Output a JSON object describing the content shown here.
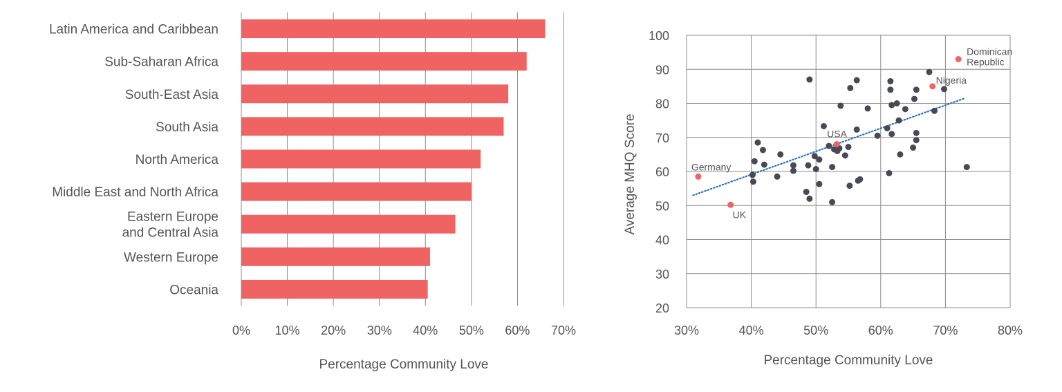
{
  "colors": {
    "bar": "#ef6363",
    "point": "#474954",
    "highlight": "#ef6363",
    "trend": "#2e6fb7",
    "grid": "#8c8c8c",
    "text": "#555555"
  },
  "chart_data": [
    {
      "type": "bar",
      "orientation": "horizontal",
      "categories": [
        "Latin America and Caribbean",
        "Sub-Saharan Africa",
        "South-East Asia",
        "South Asia",
        "North America",
        "Middle East and North Africa",
        "Eastern Europe and Central Asia",
        "Western Europe",
        "Oceania"
      ],
      "category_lines": [
        [
          "Latin America and Caribbean"
        ],
        [
          "Sub-Saharan Africa"
        ],
        [
          "South-East Asia"
        ],
        [
          "South Asia"
        ],
        [
          "North America"
        ],
        [
          "Middle East and North Africa"
        ],
        [
          "Eastern Europe",
          "and Central Asia"
        ],
        [
          "Western Europe"
        ],
        [
          "Oceania"
        ]
      ],
      "values": [
        66,
        62,
        58,
        57,
        52,
        50,
        46.5,
        41,
        40.5
      ],
      "xlim": [
        0,
        70
      ],
      "xticks": [
        0,
        10,
        20,
        30,
        40,
        50,
        60,
        70
      ],
      "xtick_labels": [
        "0%",
        "10%",
        "20%",
        "30%",
        "40%",
        "50%",
        "60%",
        "70%"
      ],
      "xlabel": "Percentage Community Love",
      "ylabel": "",
      "title": ""
    },
    {
      "type": "scatter",
      "xlim": [
        30,
        80
      ],
      "ylim": [
        20,
        100
      ],
      "xticks": [
        30,
        40,
        50,
        60,
        70,
        80
      ],
      "xtick_labels": [
        "30%",
        "40%",
        "50%",
        "60%",
        "70%",
        "80%"
      ],
      "yticks": [
        20,
        30,
        40,
        50,
        60,
        70,
        80,
        90,
        100
      ],
      "ytick_labels": [
        "20",
        "30",
        "40",
        "50",
        "60",
        "70",
        "80",
        "90",
        "100"
      ],
      "xlabel": "Percentage Community Love",
      "ylabel": "Average MHQ Score",
      "title": "",
      "points": [
        [
          41.0,
          68.5
        ],
        [
          41.8,
          66.3
        ],
        [
          40.5,
          63.0
        ],
        [
          42.0,
          62.0
        ],
        [
          44.5,
          65.0
        ],
        [
          40.2,
          59.0
        ],
        [
          40.3,
          57.0
        ],
        [
          44.0,
          58.5
        ],
        [
          46.5,
          60.2
        ],
        [
          46.5,
          61.8
        ],
        [
          48.5,
          54.0
        ],
        [
          49.0,
          52.0
        ],
        [
          48.8,
          61.8
        ],
        [
          50.0,
          60.7
        ],
        [
          49.8,
          64.5
        ],
        [
          50.5,
          63.5
        ],
        [
          50.5,
          56.3
        ],
        [
          51.2,
          73.3
        ],
        [
          52.0,
          67.5
        ],
        [
          52.5,
          61.3
        ],
        [
          52.8,
          66.5
        ],
        [
          53.3,
          66.0
        ],
        [
          53.6,
          66.8
        ],
        [
          54.5,
          64.7
        ],
        [
          55.0,
          67.2
        ],
        [
          55.2,
          55.8
        ],
        [
          56.5,
          57.3
        ],
        [
          56.8,
          57.7
        ],
        [
          56.3,
          72.3
        ],
        [
          52.5,
          51.0
        ],
        [
          49.0,
          87.0
        ],
        [
          53.8,
          79.3
        ],
        [
          55.3,
          84.5
        ],
        [
          56.3,
          86.8
        ],
        [
          58.0,
          78.5
        ],
        [
          59.5,
          70.5
        ],
        [
          61.0,
          72.7
        ],
        [
          61.3,
          59.5
        ],
        [
          61.7,
          71.0
        ],
        [
          61.7,
          79.5
        ],
        [
          62.5,
          80.0
        ],
        [
          62.8,
          75.0
        ],
        [
          63.0,
          65.0
        ],
        [
          63.8,
          78.3
        ],
        [
          61.5,
          84.0
        ],
        [
          61.5,
          86.5
        ],
        [
          65.0,
          67.0
        ],
        [
          65.2,
          81.3
        ],
        [
          65.5,
          84.0
        ],
        [
          65.5,
          69.2
        ],
        [
          65.5,
          71.3
        ],
        [
          67.5,
          89.2
        ],
        [
          68.3,
          77.8
        ],
        [
          69.8,
          84.2
        ],
        [
          73.3,
          61.3
        ]
      ],
      "highlighted": [
        {
          "label": "Germany",
          "label_lines": [
            "Germany"
          ],
          "x": 31.8,
          "y": 58.5
        },
        {
          "label": "UK",
          "label_lines": [
            "UK"
          ],
          "x": 36.8,
          "y": 50.2
        },
        {
          "label": "USA",
          "label_lines": [
            "USA"
          ],
          "x": 53.2,
          "y": 68.0
        },
        {
          "label": "Nigeria",
          "label_lines": [
            "Nigeria"
          ],
          "x": 68.0,
          "y": 85.0
        },
        {
          "label": "Dominican Republic",
          "label_lines": [
            "Dominican",
            "Republic"
          ],
          "x": 72.0,
          "y": 93.0
        }
      ],
      "trendline": {
        "x": [
          31.0,
          73.0
        ],
        "y": [
          53.0,
          81.5
        ],
        "style": "dotted"
      }
    }
  ]
}
